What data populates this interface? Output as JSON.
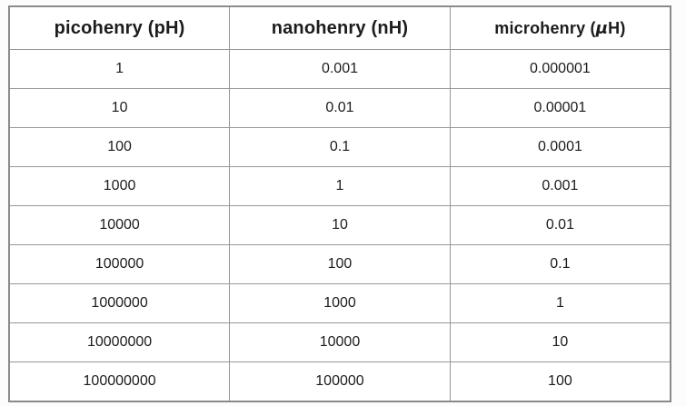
{
  "table": {
    "header": {
      "col1": "picohenry (pH)",
      "col2": "nanohenry (nH)",
      "col3_prefix": "microhenry (",
      "col3_mu": "μ",
      "col3_suffix": "H)"
    }
  },
  "chart_data": {
    "type": "table",
    "columns": [
      "picohenry (pH)",
      "nanohenry (nH)",
      "microhenry (μH)"
    ],
    "rows": [
      [
        "1",
        "0.001",
        "0.000001"
      ],
      [
        "10",
        "0.01",
        "0.00001"
      ],
      [
        "100",
        "0.1",
        "0.0001"
      ],
      [
        "1000",
        "1",
        "0.001"
      ],
      [
        "10000",
        "10",
        "0.01"
      ],
      [
        "100000",
        "100",
        "0.1"
      ],
      [
        "1000000",
        "1000",
        "1"
      ],
      [
        "10000000",
        "10000",
        "10"
      ],
      [
        "100000000",
        "100000",
        "100"
      ]
    ],
    "layout": {
      "header_bold": true,
      "cell_alignment": "center",
      "grid": true,
      "border_color": "#979797",
      "background_color": "#ffffff",
      "text_color": "#1c1c1c"
    }
  }
}
